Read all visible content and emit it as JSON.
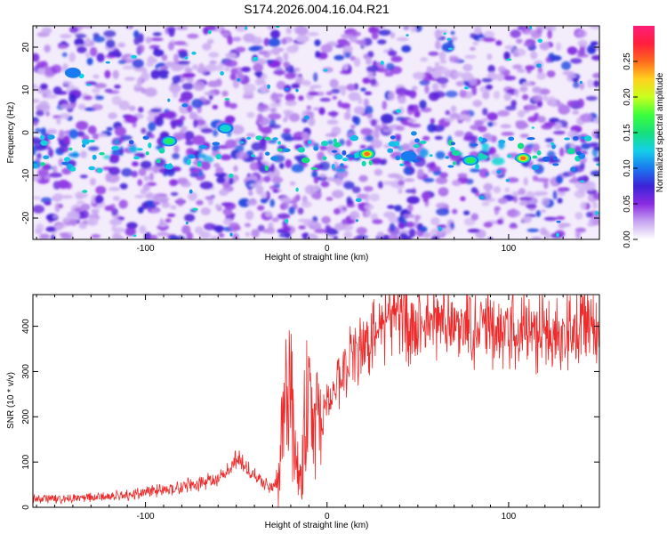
{
  "title": "S174.2026.004.16.04.R21",
  "chart_data": [
    {
      "type": "heatmap",
      "xlabel": "Height of straight line (km)",
      "ylabel": "Frequency (Hz)",
      "xlim": [
        -162,
        150
      ],
      "ylim": [
        -25,
        25
      ],
      "xticks": [
        -100,
        0,
        100
      ],
      "yticks": [
        -20,
        -10,
        0,
        10,
        20
      ],
      "colorbar": {
        "label": "Normalized spectral amplitude",
        "range": [
          0.0,
          0.3
        ],
        "ticks": [
          0.0,
          0.05,
          0.1,
          0.15,
          0.2,
          0.25
        ],
        "tick_labels": [
          "0.00",
          "0.05",
          "0.10",
          "0.15",
          "0.20",
          "0.25"
        ],
        "colormap": [
          "#ffffff",
          "#c7a6f0",
          "#8a2be2",
          "#3b23d6",
          "#1a7af0",
          "#13d0e8",
          "#15e07a",
          "#3cff3c",
          "#c8ff1e",
          "#ffd21e",
          "#ff6a1e",
          "#ff1e3c",
          "#ff1e78"
        ]
      },
      "features": [
        {
          "x": 22,
          "y": -5,
          "amp": 0.25
        },
        {
          "x": 108,
          "y": -6,
          "amp": 0.25
        },
        {
          "x": 79,
          "y": -6.5,
          "amp": 0.18
        },
        {
          "x": -87,
          "y": -2,
          "amp": 0.16
        },
        {
          "x": -56,
          "y": 1,
          "amp": 0.15
        },
        {
          "x": 45,
          "y": -5.5,
          "amp": 0.12
        },
        {
          "x": -140,
          "y": 14,
          "amp": 0.1
        }
      ]
    },
    {
      "type": "line",
      "xlabel": "Height of straight line (km)",
      "ylabel": "SNR (10 * v/v)",
      "xlim": [
        -162,
        150
      ],
      "ylim": [
        0,
        470
      ],
      "xticks": [
        -100,
        0,
        100
      ],
      "yticks": [
        0,
        100,
        200,
        300,
        400
      ],
      "series": [
        {
          "name": "SNR",
          "color": "#ee2a2a",
          "x": [
            -162,
            -150,
            -140,
            -130,
            -120,
            -110,
            -100,
            -90,
            -80,
            -70,
            -60,
            -55,
            -50,
            -45,
            -40,
            -35,
            -30,
            -26,
            -24,
            -22,
            -20,
            -18,
            -15,
            -12,
            -10,
            -8,
            -5,
            0,
            5,
            10,
            15,
            20,
            25,
            30,
            40,
            50,
            60,
            70,
            80,
            90,
            100,
            110,
            120,
            130,
            140,
            150
          ],
          "values": [
            18,
            20,
            20,
            22,
            24,
            27,
            33,
            38,
            45,
            52,
            62,
            85,
            110,
            90,
            70,
            60,
            40,
            90,
            190,
            260,
            300,
            120,
            60,
            180,
            240,
            170,
            200,
            230,
            265,
            300,
            340,
            360,
            375,
            395,
            405,
            410,
            405,
            400,
            400,
            395,
            390,
            392,
            398,
            395,
            400,
            405
          ]
        }
      ]
    }
  ]
}
